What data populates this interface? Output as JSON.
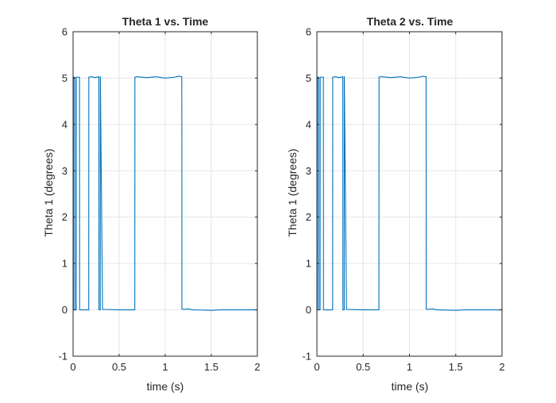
{
  "chart_data": [
    {
      "type": "line",
      "title": "Theta 1 vs. Time",
      "xlabel": "time (s)",
      "ylabel": "Theta 1 (degrees)",
      "xlim": [
        0,
        2
      ],
      "ylim": [
        -1,
        6
      ],
      "xticks": [
        "0",
        "0.5",
        "1",
        "1.5",
        "2"
      ],
      "yticks": [
        "-1",
        "0",
        "1",
        "2",
        "3",
        "4",
        "5",
        "6"
      ],
      "grid": true,
      "color": "#0072BD",
      "series": [
        {
          "x": [
            0,
            0.005,
            0.006,
            0.02,
            0.021,
            0.035,
            0.036,
            0.07,
            0.071,
            0.17,
            0.171,
            0.2,
            0.24,
            0.28,
            0.281,
            0.295,
            0.296,
            0.32,
            0.5,
            0.67,
            0.671,
            0.7,
            0.8,
            0.9,
            1.0,
            1.1,
            1.15,
            1.18,
            1.181,
            1.2,
            1.25,
            1.3,
            1.5,
            1.6,
            2.0
          ],
          "y": [
            0,
            0,
            5.02,
            5.02,
            0,
            0,
            5.02,
            5.02,
            0,
            0,
            5.02,
            5.03,
            5.01,
            5.03,
            0,
            0,
            5.04,
            0.01,
            0,
            0,
            5.02,
            5.03,
            5.01,
            5.03,
            5.0,
            5.02,
            5.04,
            5.03,
            0.02,
            0.01,
            0.02,
            0,
            -0.01,
            0,
            0
          ]
        }
      ]
    },
    {
      "type": "line",
      "title": "Theta 2 vs. Time",
      "xlabel": "time (s)",
      "ylabel": "Theta 1 (degrees)",
      "xlim": [
        0,
        2
      ],
      "ylim": [
        -1,
        6
      ],
      "xticks": [
        "0",
        "0.5",
        "1",
        "1.5",
        "2"
      ],
      "yticks": [
        "-1",
        "0",
        "1",
        "2",
        "3",
        "4",
        "5",
        "6"
      ],
      "grid": true,
      "color": "#0072BD",
      "series": [
        {
          "x": [
            0,
            0.005,
            0.006,
            0.02,
            0.021,
            0.035,
            0.036,
            0.07,
            0.071,
            0.17,
            0.171,
            0.2,
            0.24,
            0.28,
            0.281,
            0.295,
            0.296,
            0.32,
            0.5,
            0.67,
            0.671,
            0.7,
            0.8,
            0.9,
            1.0,
            1.1,
            1.15,
            1.18,
            1.181,
            1.2,
            1.25,
            1.3,
            1.5,
            1.6,
            2.0
          ],
          "y": [
            0,
            0,
            5.02,
            5.02,
            0,
            0,
            5.02,
            5.02,
            0,
            0,
            5.02,
            5.03,
            5.01,
            5.03,
            0,
            0,
            5.04,
            0.01,
            0,
            0,
            5.02,
            5.03,
            5.01,
            5.03,
            5.0,
            5.02,
            5.04,
            5.03,
            0.02,
            0.01,
            0.02,
            0,
            -0.01,
            0,
            0
          ]
        }
      ]
    }
  ]
}
